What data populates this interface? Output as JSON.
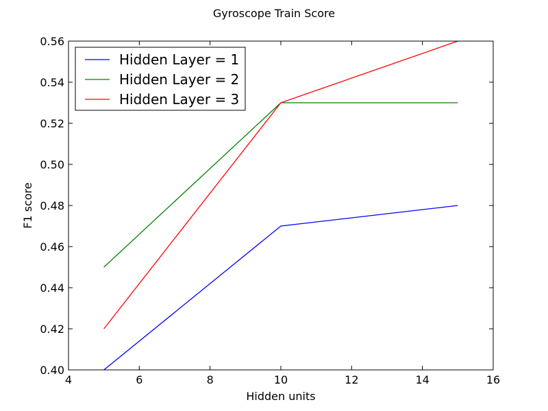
{
  "chart_data": {
    "type": "line",
    "title": "Gyroscope Train Score",
    "xlabel": "Hidden units",
    "ylabel": "F1 score",
    "xlim": [
      4,
      16
    ],
    "ylim": [
      0.4,
      0.56
    ],
    "xticks": [
      "4",
      "6",
      "8",
      "10",
      "12",
      "14",
      "16"
    ],
    "yticks": [
      "0.40",
      "0.42",
      "0.44",
      "0.46",
      "0.48",
      "0.50",
      "0.52",
      "0.54",
      "0.56"
    ],
    "x": [
      5,
      10,
      15
    ],
    "series": [
      {
        "name": "Hidden Layer = 1",
        "color": "#0000ff",
        "values": [
          0.4,
          0.47,
          0.48
        ]
      },
      {
        "name": "Hidden Layer = 2",
        "color": "#008000",
        "values": [
          0.45,
          0.53,
          0.53
        ]
      },
      {
        "name": "Hidden Layer = 3",
        "color": "#ff0000",
        "values": [
          0.42,
          0.53,
          0.56
        ]
      }
    ],
    "grid": false,
    "legend_position": "top-left"
  }
}
